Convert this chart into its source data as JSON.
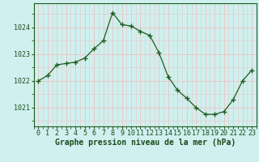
{
  "x": [
    0,
    1,
    2,
    3,
    4,
    5,
    6,
    7,
    8,
    9,
    10,
    11,
    12,
    13,
    14,
    15,
    16,
    17,
    18,
    19,
    20,
    21,
    22,
    23
  ],
  "y": [
    1022.0,
    1022.2,
    1022.6,
    1022.65,
    1022.7,
    1022.85,
    1023.2,
    1023.5,
    1024.55,
    1024.1,
    1024.05,
    1023.85,
    1023.7,
    1023.05,
    1022.15,
    1021.65,
    1021.35,
    1021.0,
    1020.75,
    1020.75,
    1020.85,
    1021.3,
    1022.0,
    1022.4
  ],
  "line_color": "#1e5c1e",
  "marker": "+",
  "marker_size": 4,
  "bg_color": "#cff0ee",
  "grid_color": "#e8c8c8",
  "ylabel_ticks": [
    1021,
    1022,
    1023,
    1024
  ],
  "xlabel": "Graphe pression niveau de la mer (hPa)",
  "xlabel_color": "#1a4a1a",
  "xlabel_fontsize": 7.0,
  "tick_fontsize": 6.0,
  "ylim": [
    1020.3,
    1024.9
  ],
  "xlim": [
    -0.5,
    23.5
  ]
}
